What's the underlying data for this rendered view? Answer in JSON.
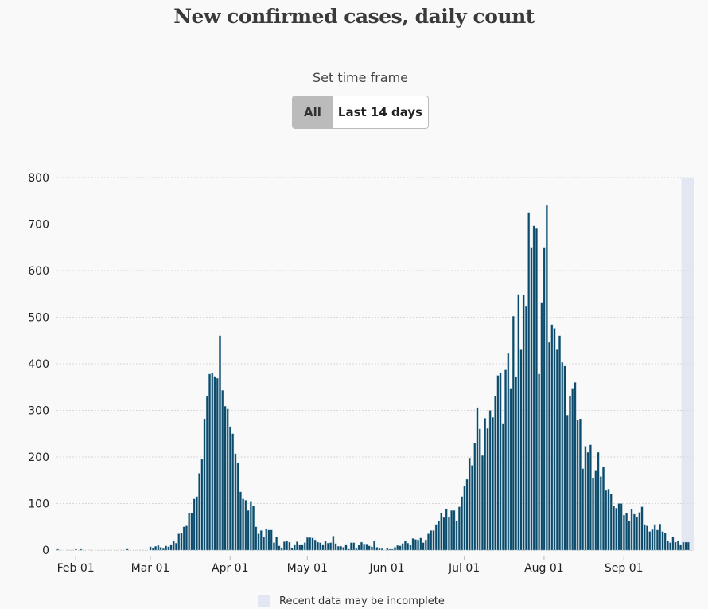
{
  "title": "New confirmed cases, daily count",
  "time_frame": {
    "label": "Set time frame",
    "options": [
      "All",
      "Last 14 days"
    ],
    "selected": "All"
  },
  "legend": {
    "recent_label": "Recent data may be incomplete",
    "recent_color": "#e3e7f1"
  },
  "colors": {
    "bar": "#0b4a6a",
    "bar_edge": "#8fb3c4",
    "grid": "#dddddd"
  },
  "chart_data": {
    "type": "bar",
    "title": "New confirmed cases, daily count",
    "xlabel": "",
    "ylabel": "",
    "start_date": "Jan 25",
    "ylim": [
      0,
      800
    ],
    "yticks": [
      0,
      100,
      200,
      300,
      400,
      500,
      600,
      700,
      800
    ],
    "xticks": [
      {
        "label": "Feb 01",
        "day": 7
      },
      {
        "label": "Mar 01",
        "day": 36
      },
      {
        "label": "Apr 01",
        "day": 67
      },
      {
        "label": "May 01",
        "day": 97
      },
      {
        "label": "Jun 01",
        "day": 128
      },
      {
        "label": "Jul 01",
        "day": 158
      },
      {
        "label": "Aug 01",
        "day": 189
      },
      {
        "label": "Sep 01",
        "day": 220
      }
    ],
    "grid": true,
    "recent_incomplete_days": 3,
    "values": [
      1,
      0,
      0,
      0,
      0,
      0,
      0,
      1,
      0,
      1,
      0,
      0,
      0,
      0,
      0,
      0,
      0,
      0,
      0,
      0,
      0,
      0,
      0,
      0,
      0,
      0,
      0,
      2,
      0,
      0,
      0,
      0,
      0,
      0,
      0,
      0,
      7,
      4,
      8,
      10,
      6,
      3,
      9,
      7,
      12,
      20,
      15,
      35,
      37,
      50,
      52,
      80,
      79,
      110,
      115,
      165,
      195,
      282,
      330,
      378,
      381,
      373,
      369,
      460,
      343,
      309,
      303,
      265,
      250,
      207,
      187,
      125,
      110,
      107,
      85,
      105,
      95,
      50,
      35,
      42,
      28,
      46,
      43,
      43,
      16,
      28,
      9,
      5,
      18,
      20,
      17,
      5,
      12,
      18,
      12,
      12,
      16,
      27,
      27,
      26,
      22,
      17,
      16,
      12,
      20,
      15,
      16,
      30,
      14,
      8,
      8,
      6,
      12,
      2,
      16,
      16,
      3,
      11,
      17,
      13,
      13,
      9,
      7,
      19,
      6,
      3,
      3,
      0,
      5,
      1,
      1,
      6,
      10,
      9,
      14,
      19,
      15,
      11,
      25,
      23,
      22,
      26,
      16,
      22,
      35,
      42,
      42,
      55,
      63,
      79,
      70,
      88,
      70,
      85,
      85,
      62,
      93,
      115,
      138,
      152,
      198,
      182,
      230,
      306,
      260,
      203,
      283,
      261,
      300,
      285,
      331,
      375,
      380,
      272,
      387,
      422,
      346,
      502,
      372,
      549,
      430,
      548,
      523,
      725,
      650,
      696,
      690,
      378,
      532,
      650,
      740,
      446,
      484,
      476,
      430,
      460,
      403,
      395,
      290,
      330,
      346,
      360,
      280,
      282,
      175,
      223,
      210,
      226,
      155,
      170,
      210,
      158,
      179,
      128,
      131,
      120,
      95,
      90,
      100,
      100,
      75,
      80,
      62,
      88,
      77,
      71,
      81,
      93,
      55,
      52,
      40,
      44,
      55,
      43,
      56,
      40,
      37,
      20,
      16,
      28,
      17,
      20,
      12,
      17,
      17,
      17
    ]
  }
}
